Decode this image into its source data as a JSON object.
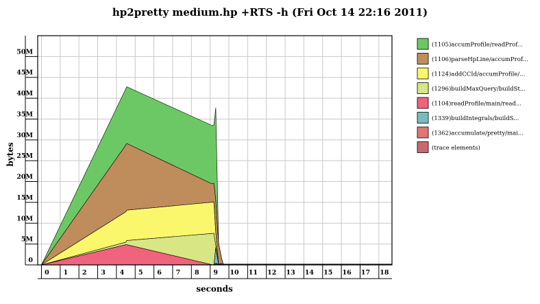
{
  "chart_data": {
    "type": "area",
    "title": "hp2pretty medium.hp +RTS -h (Fri Oct 14 22:16 2011)",
    "xlabel": "seconds",
    "ylabel": "bytes",
    "xlim": [
      -0.2,
      18.7
    ],
    "ylim": [
      0,
      55
    ],
    "x_ticks": [
      "0",
      "1",
      "2",
      "3",
      "4",
      "5",
      "6",
      "7",
      "8",
      "9",
      "10",
      "11",
      "12",
      "13",
      "14",
      "15",
      "16",
      "17",
      "18"
    ],
    "y_ticks": [
      {
        "value": 0,
        "label": "0"
      },
      {
        "value": 5,
        "label": "5M"
      },
      {
        "value": 10,
        "label": "10M"
      },
      {
        "value": 15,
        "label": "15M"
      },
      {
        "value": 20,
        "label": "20M"
      },
      {
        "value": 25,
        "label": "25M"
      },
      {
        "value": 30,
        "label": "30M"
      },
      {
        "value": 35,
        "label": "35M"
      },
      {
        "value": 40,
        "label": "40M"
      },
      {
        "value": 45,
        "label": "45M"
      },
      {
        "value": 50,
        "label": "50M"
      }
    ],
    "grid": true,
    "legend_position": "right",
    "stacked": true,
    "x": [
      0,
      4.5,
      4.55,
      9.1,
      9.2,
      9.3,
      9.45,
      9.6,
      9.7,
      18.7
    ],
    "series": [
      {
        "name": "(1105)accumProfile/readProf...",
        "color": "#6cc865",
        "values": [
          0,
          13.5,
          13.6,
          14.0,
          14.0,
          22.0,
          0,
          0,
          0,
          0
        ]
      },
      {
        "name": "(1106)parseHpLine/accumProf...",
        "color": "#bf8d5c",
        "values": [
          0,
          16.0,
          16.0,
          4.4,
          4.5,
          8.0,
          5.0,
          1.5,
          0,
          0
        ]
      },
      {
        "name": "(1124)addCCId/accumProfile/...",
        "color": "#faf76c",
        "values": [
          0,
          7.3,
          7.3,
          7.5,
          7.5,
          3.0,
          0,
          0,
          0,
          0
        ]
      },
      {
        "name": "(1296)buildMaxQuery/buildSt...",
        "color": "#d8e683",
        "values": [
          0,
          0.6,
          1.0,
          7.5,
          7.5,
          0.5,
          0,
          0,
          0,
          0
        ]
      },
      {
        "name": "(1104)readProfile/main/read...",
        "color": "#f0637d",
        "values": [
          0,
          4.8,
          4.8,
          0,
          0,
          0,
          0,
          0,
          0,
          0
        ]
      },
      {
        "name": "(1339)buildIntegrals/buildS...",
        "color": "#79bcc0",
        "values": [
          0,
          0,
          0,
          0,
          0,
          3.8,
          0,
          0,
          0,
          0
        ]
      },
      {
        "name": "(1362)accumulate/pretty/mai...",
        "color": "#e07670",
        "values": [
          0,
          0,
          0,
          0,
          0,
          0.2,
          0.1,
          0.1,
          0,
          0
        ]
      },
      {
        "name": "(trace elements)",
        "color": "#c7696e",
        "values": [
          0,
          0.05,
          0.05,
          0.05,
          0.1,
          0.2,
          0.1,
          0.2,
          0.15,
          0.15
        ]
      }
    ]
  }
}
